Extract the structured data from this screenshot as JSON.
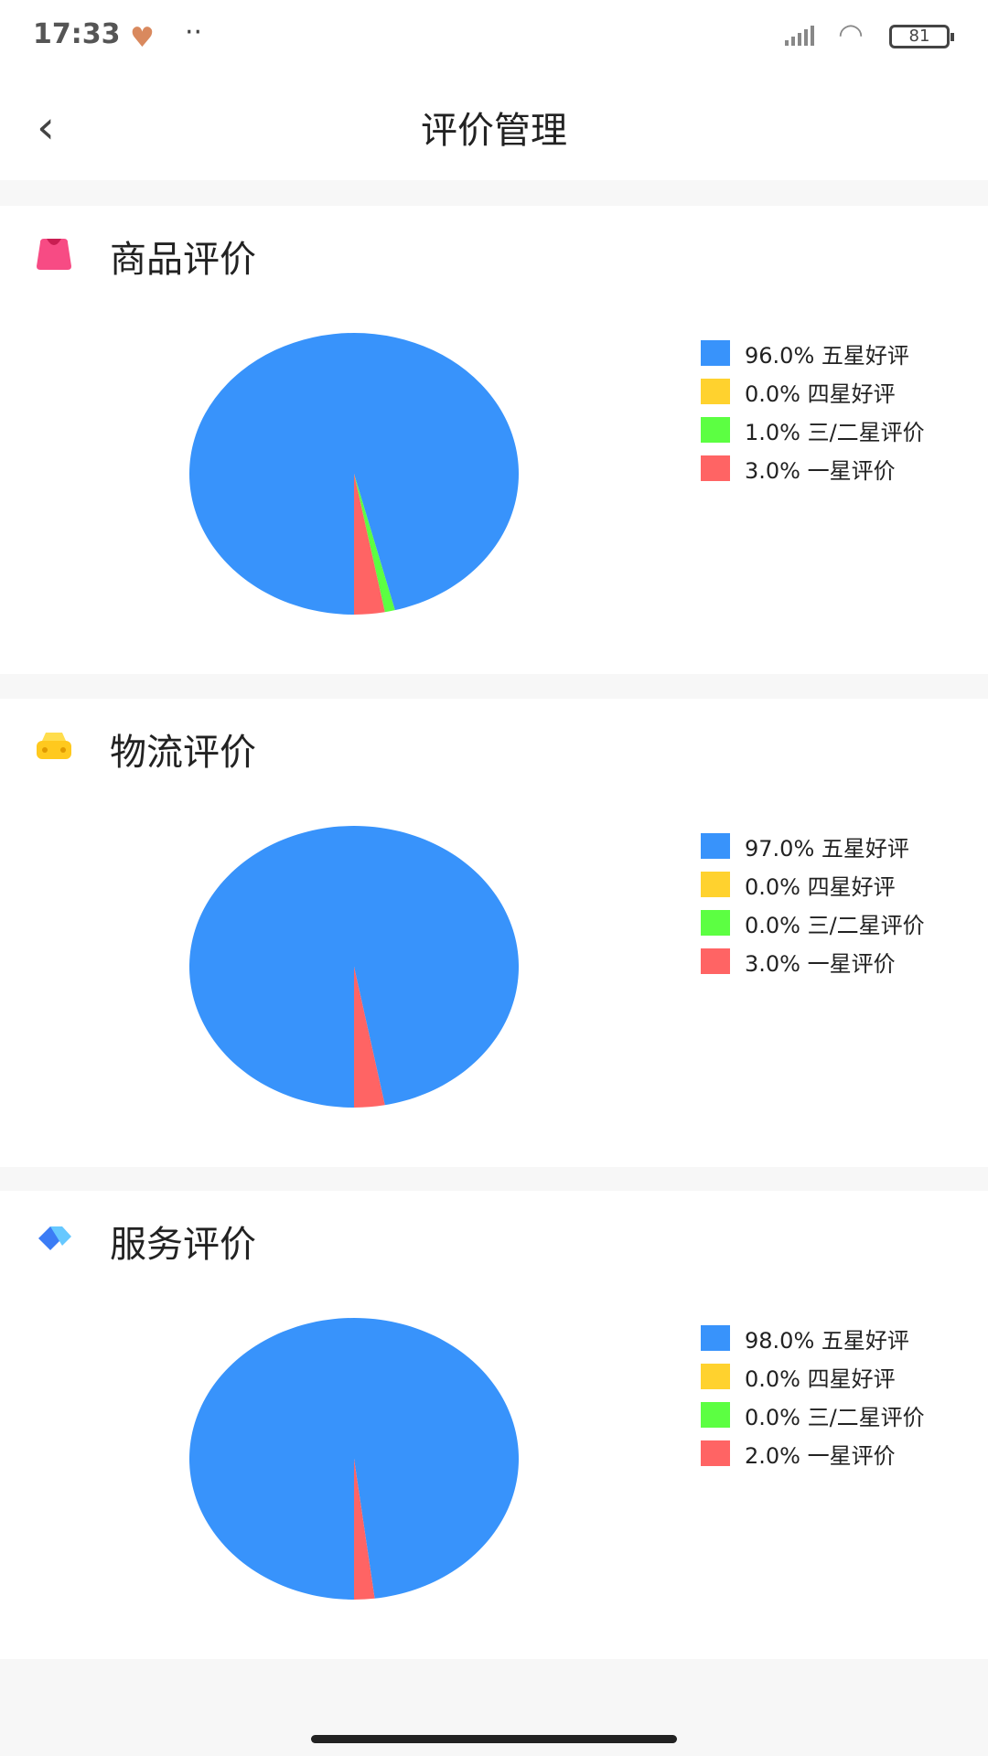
{
  "status_bar": {
    "time": "17:33",
    "battery": "81"
  },
  "header": {
    "title": "评价管理",
    "back_icon": "chevron-left-icon"
  },
  "colors": {
    "five_star": "#3893fb",
    "four_star": "#ffd22e",
    "three_two_star": "#5cff42",
    "one_star": "#ff6464"
  },
  "chart_data": [
    {
      "type": "pie",
      "title": "商品评价",
      "icon": "shopping-bag-icon",
      "categories": [
        "五星好评",
        "四星好评",
        "三/二星评价",
        "一星评价"
      ],
      "values": [
        96.0,
        0.0,
        1.0,
        3.0
      ],
      "legend_labels": [
        "96.0% 五星好评",
        "0.0% 四星好评",
        "1.0% 三/二星评价",
        "3.0% 一星评价"
      ],
      "legend": "right"
    },
    {
      "type": "pie",
      "title": "物流评价",
      "icon": "delivery-car-icon",
      "categories": [
        "五星好评",
        "四星好评",
        "三/二星评价",
        "一星评价"
      ],
      "values": [
        97.0,
        0.0,
        0.0,
        3.0
      ],
      "legend_labels": [
        "97.0% 五星好评",
        "0.0% 四星好评",
        "0.0% 三/二星评价",
        "3.0% 一星评价"
      ],
      "legend": "right"
    },
    {
      "type": "pie",
      "title": "服务评价",
      "icon": "diamond-icon",
      "categories": [
        "五星好评",
        "四星好评",
        "三/二星评价",
        "一星评价"
      ],
      "values": [
        98.0,
        0.0,
        0.0,
        2.0
      ],
      "legend_labels": [
        "98.0% 五星好评",
        "0.0% 四星好评",
        "0.0% 三/二星评价",
        "2.0% 一星评价"
      ],
      "legend": "right"
    }
  ]
}
